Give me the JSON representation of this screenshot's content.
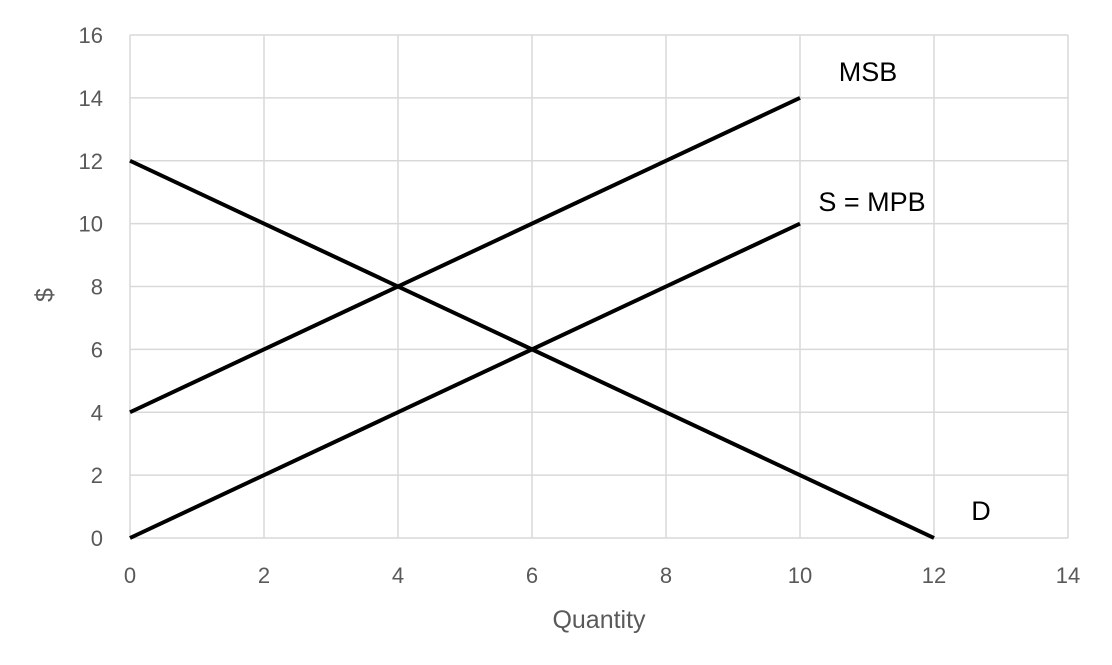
{
  "chart_data": {
    "type": "line",
    "xlabel": "Quantity",
    "ylabel": "$",
    "xlim": [
      0,
      14
    ],
    "ylim": [
      0,
      16
    ],
    "xticks": [
      0,
      2,
      4,
      6,
      8,
      10,
      12,
      14
    ],
    "yticks": [
      0,
      2,
      4,
      6,
      8,
      10,
      12,
      14,
      16
    ],
    "grid": true,
    "series": [
      {
        "name": "MSB",
        "x": [
          0,
          10
        ],
        "y": [
          4,
          14
        ]
      },
      {
        "name": "S = MPB",
        "x": [
          0,
          10
        ],
        "y": [
          0,
          10
        ]
      },
      {
        "name": "D",
        "x": [
          0,
          12
        ],
        "y": [
          12,
          0
        ]
      }
    ]
  },
  "colors": {
    "line": "#000000",
    "grid": "#d9d9d9",
    "axis_text": "#595959"
  }
}
